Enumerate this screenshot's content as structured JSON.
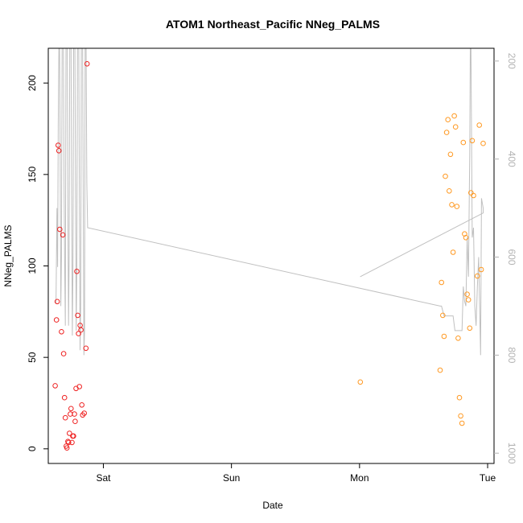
{
  "chart_data": {
    "type": "scatter",
    "title": "ATOM1 Northeast_Pacific NNeg_PALMS",
    "xlabel": "Date",
    "ylabel": "NNeg_PALMS",
    "x_unit": "days since Sat 00:00",
    "xlim": [
      -0.43,
      3.05
    ],
    "ylim": [
      -8,
      219
    ],
    "x_ticks": [
      {
        "value": 0,
        "label": "Sat"
      },
      {
        "value": 1,
        "label": "Sun"
      },
      {
        "value": 2,
        "label": "Mon"
      },
      {
        "value": 3,
        "label": "Tue"
      }
    ],
    "y_ticks": [
      {
        "value": 0,
        "label": "0"
      },
      {
        "value": 50,
        "label": "50"
      },
      {
        "value": 100,
        "label": "100"
      },
      {
        "value": 150,
        "label": "150"
      },
      {
        "value": 200,
        "label": "200"
      }
    ],
    "y2_range": [
      174,
      1021
    ],
    "y2_ticks": [
      {
        "value": 200,
        "label": "200"
      },
      {
        "value": 400,
        "label": "400"
      },
      {
        "value": 600,
        "label": "600"
      },
      {
        "value": 800,
        "label": "800"
      },
      {
        "value": 1000,
        "label": "1000"
      }
    ],
    "colors": {
      "series1": "#ee2222",
      "series2": "#ff9922",
      "depth_line": "#c0c0c0"
    },
    "series": [
      {
        "name": "series1",
        "points": [
          [
            -0.376,
            34.5
          ],
          [
            -0.366,
            70.5
          ],
          [
            -0.36,
            80.5
          ],
          [
            -0.353,
            166
          ],
          [
            -0.347,
            163
          ],
          [
            -0.34,
            120
          ],
          [
            -0.327,
            64
          ],
          [
            -0.316,
            117
          ],
          [
            -0.31,
            52
          ],
          [
            -0.303,
            28
          ],
          [
            -0.297,
            17
          ],
          [
            -0.29,
            1.5
          ],
          [
            -0.284,
            0.5
          ],
          [
            -0.277,
            4
          ],
          [
            -0.271,
            3.5
          ],
          [
            -0.265,
            8.5
          ],
          [
            -0.258,
            19
          ],
          [
            -0.252,
            22
          ],
          [
            -0.245,
            3.5
          ],
          [
            -0.239,
            7
          ],
          [
            -0.233,
            7
          ],
          [
            -0.226,
            19
          ],
          [
            -0.22,
            15
          ],
          [
            -0.213,
            33
          ],
          [
            -0.207,
            97
          ],
          [
            -0.2,
            73
          ],
          [
            -0.194,
            63
          ],
          [
            -0.187,
            34
          ],
          [
            -0.181,
            67.5
          ],
          [
            -0.175,
            65
          ],
          [
            -0.168,
            24
          ],
          [
            -0.162,
            18.5
          ],
          [
            -0.149,
            19.5
          ],
          [
            -0.136,
            55
          ],
          [
            -0.127,
            210.5
          ]
        ]
      },
      {
        "name": "series2",
        "points": [
          [
            2.006,
            36.5
          ],
          [
            2.629,
            43
          ],
          [
            2.64,
            91
          ],
          [
            2.65,
            73
          ],
          [
            2.66,
            61.5
          ],
          [
            2.67,
            149
          ],
          [
            2.68,
            173
          ],
          [
            2.69,
            180
          ],
          [
            2.7,
            141
          ],
          [
            2.71,
            161
          ],
          [
            2.72,
            133.5
          ],
          [
            2.73,
            107.5
          ],
          [
            2.74,
            182
          ],
          [
            2.75,
            176
          ],
          [
            2.76,
            132.5
          ],
          [
            2.77,
            60.5
          ],
          [
            2.78,
            28
          ],
          [
            2.79,
            18
          ],
          [
            2.8,
            14
          ],
          [
            2.81,
            167.5
          ],
          [
            2.82,
            117.5
          ],
          [
            2.83,
            115.5
          ],
          [
            2.84,
            84.5
          ],
          [
            2.85,
            81.5
          ],
          [
            2.86,
            66
          ],
          [
            2.87,
            140
          ],
          [
            2.88,
            168.5
          ],
          [
            2.89,
            138.5
          ],
          [
            2.92,
            94.5
          ],
          [
            2.935,
            177
          ],
          [
            2.95,
            98
          ],
          [
            2.965,
            167
          ]
        ]
      }
    ],
    "depth_line": [
      [
        -0.37,
        695
      ],
      [
        -0.362,
        500
      ],
      [
        -0.357,
        620
      ],
      [
        -0.352,
        330
      ],
      [
        -0.347,
        174
      ],
      [
        -0.342,
        174
      ],
      [
        -0.337,
        400
      ],
      [
        -0.332,
        700
      ],
      [
        -0.327,
        600
      ],
      [
        -0.322,
        174
      ],
      [
        -0.312,
        174
      ],
      [
        -0.307,
        450
      ],
      [
        -0.302,
        620
      ],
      [
        -0.297,
        740
      ],
      [
        -0.292,
        174
      ],
      [
        -0.282,
        174
      ],
      [
        -0.277,
        520
      ],
      [
        -0.272,
        740
      ],
      [
        -0.267,
        600
      ],
      [
        -0.262,
        174
      ],
      [
        -0.252,
        174
      ],
      [
        -0.247,
        500
      ],
      [
        -0.242,
        760
      ],
      [
        -0.237,
        620
      ],
      [
        -0.232,
        174
      ],
      [
        -0.222,
        174
      ],
      [
        -0.217,
        480
      ],
      [
        -0.212,
        750
      ],
      [
        -0.207,
        620
      ],
      [
        -0.202,
        174
      ],
      [
        -0.192,
        174
      ],
      [
        -0.187,
        500
      ],
      [
        -0.182,
        790
      ],
      [
        -0.177,
        700
      ],
      [
        -0.172,
        174
      ],
      [
        -0.162,
        174
      ],
      [
        -0.157,
        500
      ],
      [
        -0.152,
        800
      ],
      [
        -0.147,
        750
      ],
      [
        -0.142,
        174
      ],
      [
        -0.135,
        174
      ],
      [
        -0.129,
        450
      ],
      [
        -0.123,
        540
      ],
      [
        2.63,
        700
      ],
      [
        2.64,
        700
      ],
      [
        2.66,
        720
      ],
      [
        2.7,
        720
      ],
      [
        2.73,
        720
      ],
      [
        2.745,
        750
      ],
      [
        2.8,
        750
      ],
      [
        2.81,
        660
      ],
      [
        2.82,
        690
      ],
      [
        2.83,
        700
      ],
      [
        2.84,
        560
      ],
      [
        2.85,
        640
      ],
      [
        2.86,
        390
      ],
      [
        2.865,
        174
      ],
      [
        2.87,
        174
      ],
      [
        2.88,
        560
      ],
      [
        2.89,
        540
      ],
      [
        2.9,
        700
      ],
      [
        2.91,
        740
      ],
      [
        2.92,
        660
      ],
      [
        2.93,
        600
      ],
      [
        2.945,
        800
      ],
      [
        2.952,
        480
      ],
      [
        2.965,
        500
      ],
      [
        2.965,
        510
      ],
      [
        2.005,
        640
      ]
    ]
  }
}
